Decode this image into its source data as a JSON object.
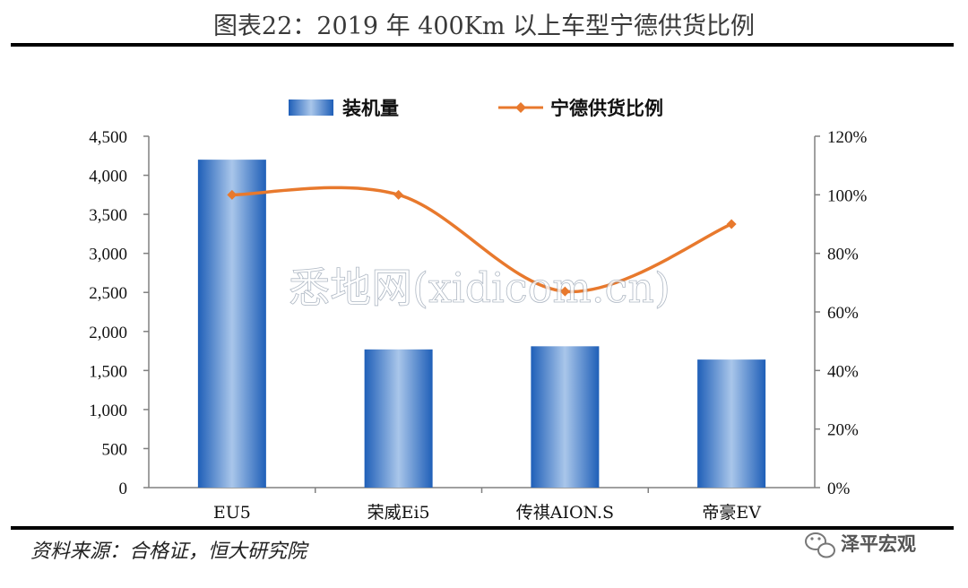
{
  "header": {
    "title": "图表22：2019 年 400Km 以上车型宁德供货比例"
  },
  "footer": {
    "source": "资料来源：合格证，恒大研究院",
    "brand": "泽平宏观"
  },
  "watermark": "悉地网(xidicom.cn)",
  "colors": {
    "bar": "#2e6fc7",
    "line": "#e8792d",
    "rule": "#000000",
    "axis": "#808080"
  },
  "chart_data": {
    "type": "bar",
    "categories": [
      "EU5",
      "荣威Ei5",
      "传祺AION.S",
      "帝豪EV"
    ],
    "series": [
      {
        "name": "装机量",
        "type": "bar",
        "axis": "left",
        "values": [
          4200,
          1770,
          1810,
          1640
        ]
      },
      {
        "name": "宁德供货比例",
        "type": "line",
        "axis": "right",
        "values": [
          100,
          100,
          67,
          90
        ]
      }
    ],
    "y_left": {
      "min": 0,
      "max": 4500,
      "ticks": [
        "0",
        "500",
        "1,000",
        "1,500",
        "2,000",
        "2,500",
        "3,000",
        "3,500",
        "4,000",
        "4,500"
      ]
    },
    "y_right": {
      "min": 0,
      "max": 120,
      "ticks": [
        "0%",
        "20%",
        "40%",
        "60%",
        "80%",
        "100%",
        "120%"
      ]
    },
    "legend_position": "top-center",
    "grid": false
  }
}
